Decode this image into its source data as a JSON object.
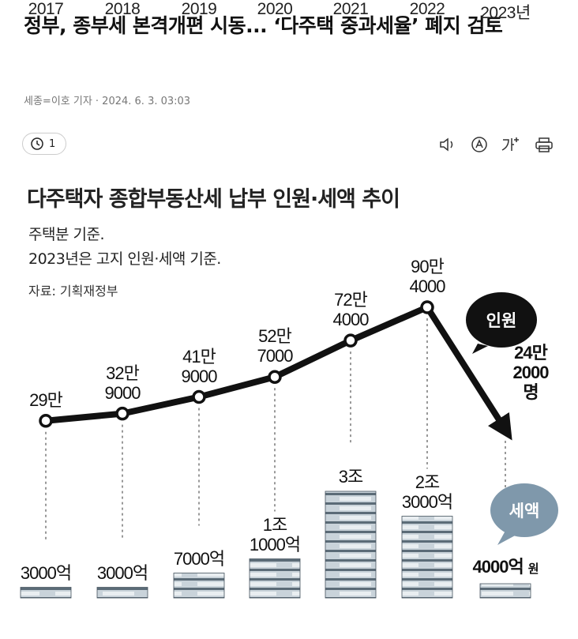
{
  "header": {
    "title": "정부, 종부세 본격개편 시동... ‘다주택 중과세율’ 폐지 검토",
    "byline": "세종=이호 기자 · 2024. 6. 3. 03:03"
  },
  "toolbar": {
    "comments": 1
  },
  "chart_data": {
    "type": "line",
    "title": "다주택자 종합부동산세 납부 인원·세액 추이",
    "subtitle": [
      "주택분 기준.",
      "2023년은 고지 인원·세액 기준."
    ],
    "source": "자료: 기획재정부",
    "categories": [
      "2017",
      "2018",
      "2019",
      "2020",
      "2021",
      "2022",
      "2023년"
    ],
    "series": [
      {
        "name": "인원",
        "type": "line",
        "color": "#111111",
        "values": [
          290000,
          329000,
          419000,
          527000,
          724000,
          904000,
          242000
        ],
        "value_labels": [
          "29만",
          "32만\n9000",
          "41만\n9000",
          "52만\n7000",
          "72만\n4000",
          "90만\n4000",
          "24만\n2000명"
        ]
      },
      {
        "name": "세액",
        "type": "bar",
        "color": "#7f98ab",
        "values": [
          3000,
          3000,
          7000,
          11000,
          30000,
          23000,
          4000
        ],
        "value_labels": [
          "3000억",
          "3000억",
          "7000억",
          "1조\n1000억",
          "3조",
          "2조\n3000억",
          "4000억"
        ],
        "unit": "원"
      }
    ]
  }
}
